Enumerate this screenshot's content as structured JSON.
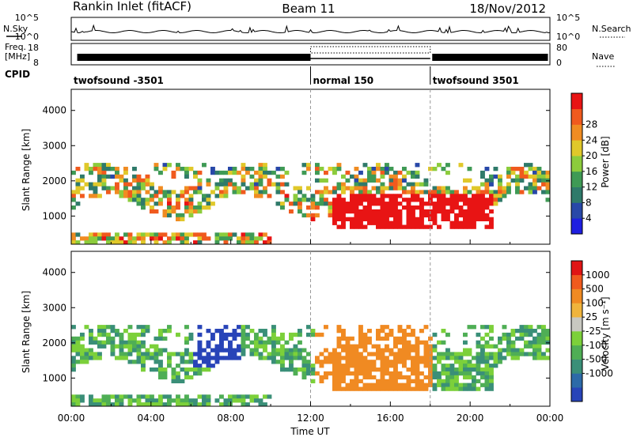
{
  "header": {
    "title": "Rankin Inlet (fitACF)",
    "beam": "Beam 11",
    "date": "18/Nov/2012"
  },
  "noise_panel": {
    "left_label": "N.Sky",
    "right_label": "N.Search",
    "left_ticks": [
      "10^5",
      "10^0"
    ],
    "right_ticks": [
      "10^5",
      "10^0"
    ]
  },
  "freq_panel": {
    "left_label_1": "Freq.",
    "left_label_2": "[MHz]",
    "right_label": "Nave",
    "left_ticks": [
      "18",
      "8"
    ],
    "right_ticks": [
      "80",
      "0"
    ]
  },
  "cpid": {
    "label": "CPID",
    "segments": [
      {
        "name": "twofsound -3501",
        "start_hour": 0,
        "end_hour": 12
      },
      {
        "name": "normal 150",
        "start_hour": 12,
        "end_hour": 18
      },
      {
        "name": "twofsound 3501",
        "start_hour": 18,
        "end_hour": 24
      }
    ]
  },
  "chart_data": [
    {
      "type": "heatmap",
      "name": "power",
      "ylabel": "Slant Range [km]",
      "yticks": [
        "1000",
        "2000",
        "3000",
        "4000"
      ],
      "ylim": [
        200,
        4600
      ],
      "colorbar_label": "Power [dB]",
      "colorbar_ticks": [
        "4",
        "8",
        "12",
        "16",
        "20",
        "24",
        "28"
      ],
      "colors": [
        "#1e1ee0",
        "#2848a8",
        "#2f7a6a",
        "#3f9a55",
        "#8ccc3c",
        "#e0c82a",
        "#f08c22",
        "#f05a1e",
        "#e81414"
      ]
    },
    {
      "type": "heatmap",
      "name": "velocity",
      "ylabel": "Slant Range [km]",
      "yticks": [
        "1000",
        "2000",
        "3000",
        "4000"
      ],
      "ylim": [
        200,
        4600
      ],
      "colorbar_label": "Velocity [m s⁻¹]",
      "colorbar_ticks": [
        "1000",
        "500",
        "100",
        "25",
        "-25",
        "-100",
        "-500",
        "-1000"
      ],
      "colors": [
        "#2844b8",
        "#2d6aa8",
        "#3a8f78",
        "#4fae55",
        "#7cd03a",
        "#c8c8c0",
        "#f0b43c",
        "#f08a22",
        "#f05a1e",
        "#e01414"
      ]
    }
  ],
  "x_axis": {
    "label": "Time UT",
    "ticks": [
      "00:00",
      "04:00",
      "08:00",
      "12:00",
      "16:00",
      "20:00",
      "00:00"
    ]
  }
}
